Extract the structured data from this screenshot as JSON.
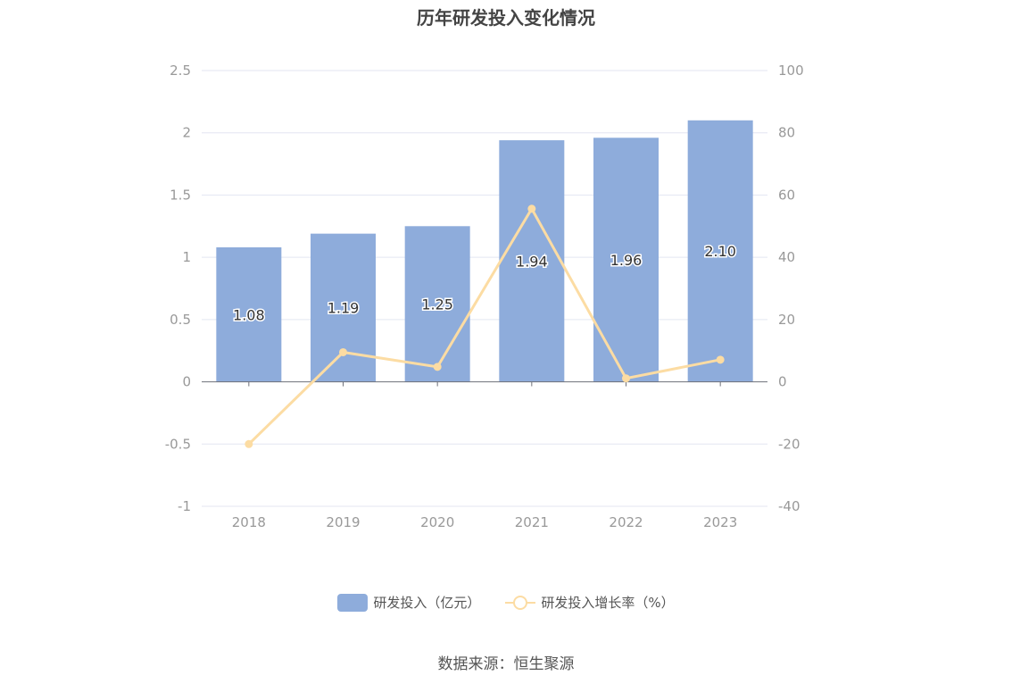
{
  "title": "历年研发投入变化情况",
  "source": "数据来源：恒生聚源",
  "legend": {
    "bar_label": "研发投入（亿元）",
    "line_label": "研发投入增长率（%）"
  },
  "colors": {
    "bar": "#8eacdb",
    "line": "#fcdca3",
    "grid": "#e3e6f2",
    "axis_text": "#999999"
  },
  "chart_data": {
    "type": "bar",
    "categories": [
      "2018",
      "2019",
      "2020",
      "2021",
      "2022",
      "2023"
    ],
    "series": [
      {
        "name": "研发投入（亿元）",
        "type": "bar",
        "axis": "left",
        "values": [
          1.08,
          1.19,
          1.25,
          1.94,
          1.96,
          2.1
        ],
        "labels": [
          "1.08",
          "1.19",
          "1.25",
          "1.94",
          "1.96",
          "2.10"
        ]
      },
      {
        "name": "研发投入增长率（%）",
        "type": "line",
        "axis": "right",
        "values": [
          -20,
          9.5,
          4.8,
          55.6,
          1.1,
          7.1
        ]
      }
    ],
    "y_left": {
      "ticks": [
        "2.5",
        "2",
        "1.5",
        "1",
        "0.5",
        "0",
        "-0.5",
        "-1"
      ],
      "range": [
        -1,
        2.5
      ]
    },
    "y_right": {
      "ticks": [
        "100",
        "80",
        "60",
        "40",
        "20",
        "0",
        "-20",
        "-40"
      ],
      "range": [
        -40,
        100
      ]
    },
    "grid": true,
    "legend_position": "bottom"
  }
}
